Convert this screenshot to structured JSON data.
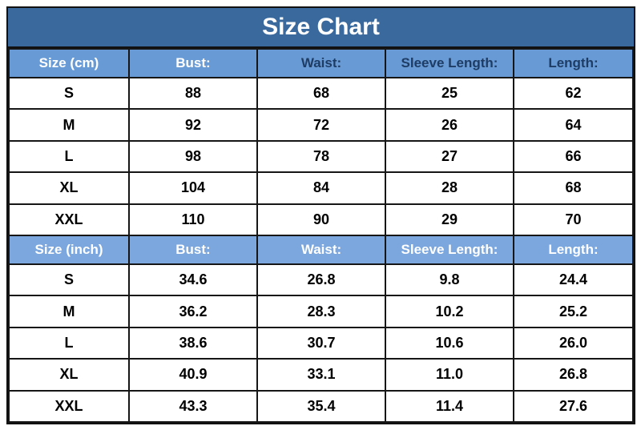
{
  "title": "Size Chart",
  "colors": {
    "title_bg": "#3A699E",
    "header_bg_cm": "#689BD6",
    "header_bg_inch": "#7BA7DE",
    "header_text_dark": "#1E3C64",
    "header_text_light": "#FFFFFF",
    "border": "#161616"
  },
  "chart_data": {
    "type": "table",
    "title": "Size Chart",
    "sections": [
      {
        "header": [
          "Size (cm)",
          "Bust:",
          "Waist:",
          "Sleeve Length:",
          "Length:"
        ],
        "header_text_styles": [
          "light",
          "light",
          "dark",
          "dark",
          "dark"
        ],
        "rows": [
          [
            "S",
            "88",
            "68",
            "25",
            "62"
          ],
          [
            "M",
            "92",
            "72",
            "26",
            "64"
          ],
          [
            "L",
            "98",
            "78",
            "27",
            "66"
          ],
          [
            "XL",
            "104",
            "84",
            "28",
            "68"
          ],
          [
            "XXL",
            "110",
            "90",
            "29",
            "70"
          ]
        ]
      },
      {
        "header": [
          "Size (inch)",
          "Bust:",
          "Waist:",
          "Sleeve Length:",
          "Length:"
        ],
        "header_text_styles": [
          "light",
          "light",
          "light",
          "light",
          "light"
        ],
        "rows": [
          [
            "S",
            "34.6",
            "26.8",
            "9.8",
            "24.4"
          ],
          [
            "M",
            "36.2",
            "28.3",
            "10.2",
            "25.2"
          ],
          [
            "L",
            "38.6",
            "30.7",
            "10.6",
            "26.0"
          ],
          [
            "XL",
            "40.9",
            "33.1",
            "11.0",
            "26.8"
          ],
          [
            "XXL",
            "43.3",
            "35.4",
            "11.4",
            "27.6"
          ]
        ]
      }
    ]
  }
}
